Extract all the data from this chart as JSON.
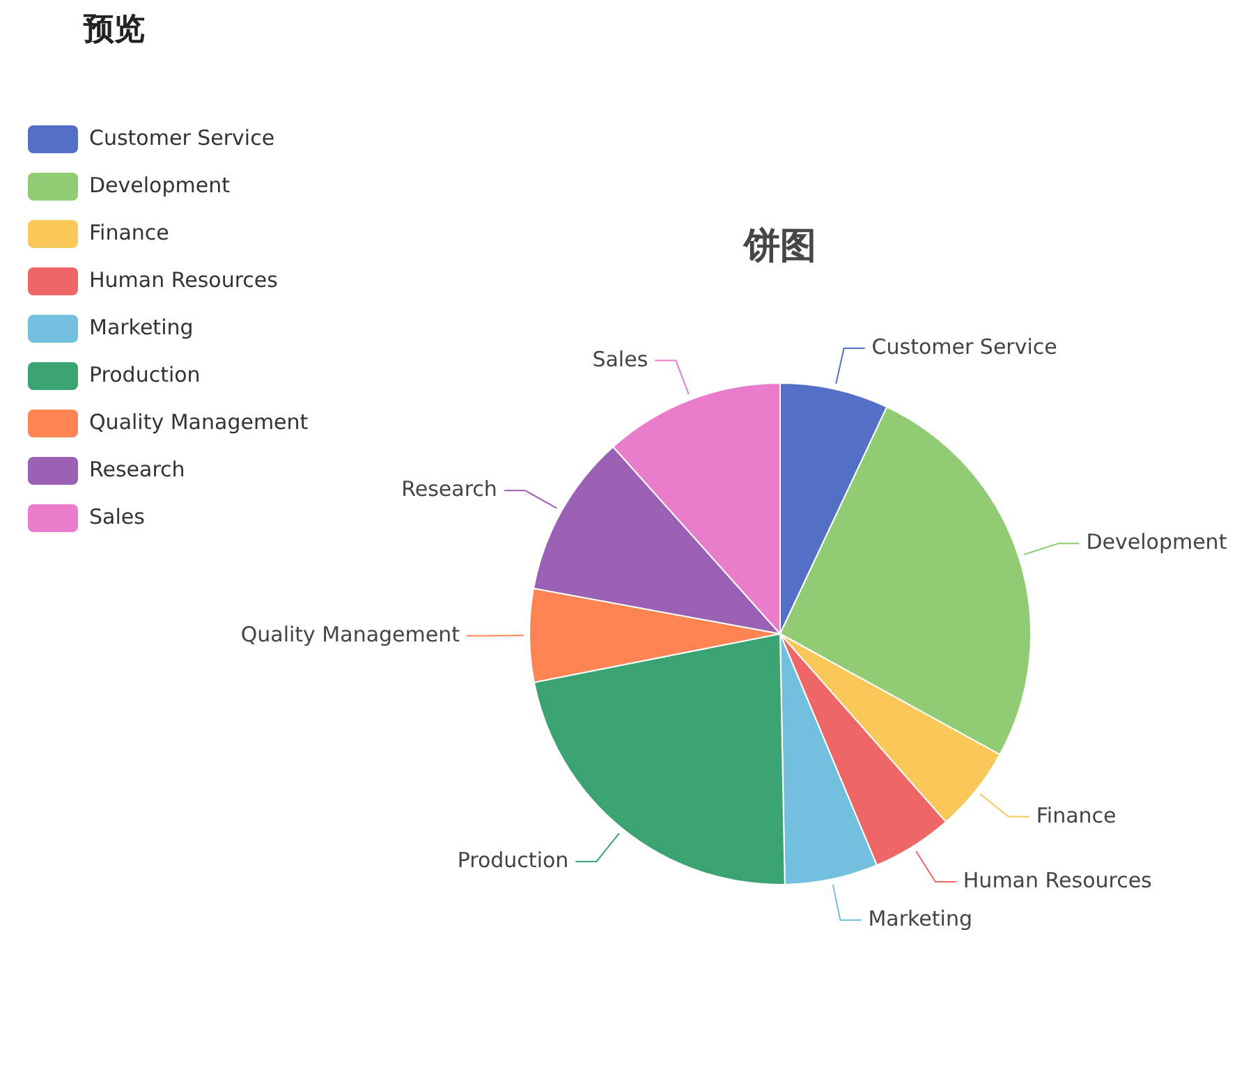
{
  "chart_data": {
    "type": "pie",
    "title": "饼图",
    "annotations": [
      "预览"
    ],
    "legend": "top left",
    "categories": [
      "Customer Service",
      "Development",
      "Finance",
      "Human Resources",
      "Marketing",
      "Production",
      "Quality Management",
      "Research",
      "Sales"
    ],
    "values": [
      7,
      26,
      5.5,
      5.2,
      6,
      22.2,
      6,
      10.5,
      11.6
    ],
    "colors": [
      "#5470c6",
      "#91cc75",
      "#fac858",
      "#ee6666",
      "#73c0de",
      "#3ba272",
      "#fc8452",
      "#9a60b4",
      "#ea7ccc"
    ]
  }
}
